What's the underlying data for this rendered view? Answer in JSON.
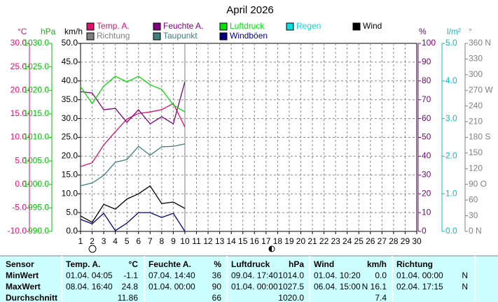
{
  "chart_data": {
    "type": "line",
    "title": "April 2026",
    "x": [
      1,
      2,
      3,
      4,
      5,
      6,
      7,
      8,
      9,
      10,
      11,
      12,
      13,
      14,
      15,
      16,
      17,
      18,
      19,
      20,
      21,
      22,
      23,
      24,
      25,
      26,
      27,
      28,
      29,
      30
    ],
    "xlim": [
      1,
      30
    ],
    "xticks": [
      1,
      2,
      3,
      4,
      5,
      6,
      7,
      8,
      9,
      10,
      11,
      12,
      13,
      14,
      15,
      16,
      17,
      18,
      19,
      20,
      21,
      22,
      23,
      24,
      25,
      26,
      27,
      28,
      29,
      30
    ],
    "grid": true,
    "axes": [
      {
        "name": "°C",
        "color": "#e0106e",
        "side": "left",
        "lim": [
          -10,
          30
        ],
        "ticks": [
          {
            "value": -10,
            "label": "-10.0"
          },
          {
            "value": -5,
            "label": "-5.0"
          },
          {
            "value": 0,
            "label": "0.0"
          },
          {
            "value": 5,
            "label": "5.0"
          },
          {
            "value": 10,
            "label": "10.0"
          },
          {
            "value": 15,
            "label": "15.0"
          },
          {
            "value": 20,
            "label": "20.0"
          },
          {
            "value": 25,
            "label": "25.0"
          },
          {
            "value": 30,
            "label": "30.0"
          }
        ]
      },
      {
        "name": "hPa",
        "color": "#00c000",
        "side": "left",
        "lim": [
          990,
          1030
        ],
        "ticks": [
          {
            "value": 990,
            "label": "990.0"
          },
          {
            "value": 995,
            "label": "995.0"
          },
          {
            "value": 1000,
            "label": "1000.0"
          },
          {
            "value": 1005,
            "label": "1005.0"
          },
          {
            "value": 1010,
            "label": "1010.0"
          },
          {
            "value": 1015,
            "label": "1015.0"
          },
          {
            "value": 1020,
            "label": "1020.0"
          },
          {
            "value": 1025,
            "label": "1025.0"
          },
          {
            "value": 1030,
            "label": "1030.0"
          }
        ]
      },
      {
        "name": "km/h",
        "color": "#000000",
        "side": "left",
        "lim": [
          0,
          50
        ],
        "ticks": [
          {
            "value": 0,
            "label": "0.0"
          },
          {
            "value": 5,
            "label": "5.0"
          },
          {
            "value": 10,
            "label": "10.0"
          },
          {
            "value": 15,
            "label": "15.0"
          },
          {
            "value": 20,
            "label": "20.0"
          },
          {
            "value": 25,
            "label": "25.0"
          },
          {
            "value": 30,
            "label": "30.0"
          },
          {
            "value": 35,
            "label": "35.0"
          },
          {
            "value": 40,
            "label": "40.0"
          },
          {
            "value": 45,
            "label": "45.0"
          },
          {
            "value": 50,
            "label": "50.0"
          }
        ]
      },
      {
        "name": "%",
        "color": "#800080",
        "side": "right",
        "lim": [
          0,
          100
        ],
        "ticks": [
          0,
          10,
          20,
          30,
          40,
          50,
          60,
          70,
          80,
          90,
          100
        ]
      },
      {
        "name": "l/m²",
        "color": "#00c0c0",
        "side": "right",
        "lim": [
          0,
          5
        ],
        "ticks": [
          {
            "value": 0,
            "label": "0.0"
          },
          {
            "value": 1,
            "label": "1.0"
          },
          {
            "value": 2,
            "label": "2.0"
          },
          {
            "value": 3,
            "label": "3.0"
          },
          {
            "value": 4,
            "label": "4.0"
          },
          {
            "value": 5,
            "label": "5.0"
          }
        ]
      },
      {
        "name": "°",
        "color": "#808080",
        "side": "right",
        "lim": [
          0,
          360
        ],
        "ticks": [
          {
            "value": 0,
            "label": "0 N"
          },
          30,
          60,
          {
            "value": 90,
            "label": "90 O"
          },
          120,
          150,
          {
            "value": 180,
            "label": "180 S"
          },
          210,
          240,
          {
            "value": 270,
            "label": "270 W"
          },
          300,
          330,
          {
            "value": 360,
            "label": "360 N"
          }
        ]
      }
    ],
    "series": [
      {
        "name": "Temp. A.",
        "color": "#e0106e",
        "axis": 0,
        "values": [
          3.8,
          4.6,
          8.4,
          11.2,
          13.9,
          15.1,
          15.4,
          15.9,
          17.2,
          12.2,
          null,
          null,
          null,
          null,
          null,
          null,
          null,
          null,
          null,
          null,
          null,
          null,
          null,
          null,
          null,
          null,
          null,
          null,
          null,
          null
        ]
      },
      {
        "name": "Feuchte A.",
        "color": "#800080",
        "axis": 3,
        "values": [
          74.3,
          73.6,
          64.7,
          65.4,
          58,
          64.7,
          57.2,
          61,
          57.2,
          79.6,
          null,
          null,
          null,
          null,
          null,
          null,
          null,
          null,
          null,
          null,
          null,
          null,
          null,
          null,
          null,
          null,
          null,
          null,
          null,
          null
        ]
      },
      {
        "name": "Luftdruck",
        "color": "#00e000",
        "axis": 1,
        "values": [
          1020.8,
          1017.2,
          1020.9,
          1023,
          1021.8,
          1023,
          1021.2,
          1020.2,
          1016.9,
          1015.4,
          null,
          null,
          null,
          null,
          null,
          null,
          null,
          null,
          null,
          null,
          null,
          null,
          null,
          null,
          null,
          null,
          null,
          null,
          null,
          null
        ]
      },
      {
        "name": "Regen",
        "color": "#00e0e0",
        "axis": 4,
        "values": [
          null,
          null,
          null,
          null,
          null,
          null,
          null,
          null,
          null,
          null,
          null,
          null,
          null,
          null,
          null,
          null,
          null,
          null,
          null,
          null,
          null,
          null,
          null,
          null,
          null,
          null,
          null,
          null,
          null,
          null
        ]
      },
      {
        "name": "Wind",
        "color": "#000000",
        "axis": 2,
        "values": [
          4.1,
          2.4,
          7.2,
          5.9,
          8.6,
          10,
          12.1,
          7.4,
          7.8,
          6.1,
          null,
          null,
          null,
          null,
          null,
          null,
          null,
          null,
          null,
          null,
          null,
          null,
          null,
          null,
          null,
          null,
          null,
          null,
          null,
          null
        ]
      },
      {
        "name": "Richtung",
        "color": "#808080",
        "axis": 5,
        "values": [
          null,
          null,
          null,
          null,
          null,
          null,
          null,
          null,
          null,
          null,
          null,
          null,
          null,
          null,
          null,
          null,
          null,
          null,
          null,
          null,
          null,
          null,
          null,
          null,
          null,
          null,
          null,
          null,
          null,
          null
        ]
      },
      {
        "name": "Taupunkt",
        "color": "#408080",
        "axis": 0,
        "values": [
          -0.3,
          0.3,
          1.9,
          4.7,
          5.3,
          8.1,
          6.2,
          8,
          8.1,
          8.6,
          null,
          null,
          null,
          null,
          null,
          null,
          null,
          null,
          null,
          null,
          null,
          null,
          null,
          null,
          null,
          null,
          null,
          null,
          null,
          null
        ]
      },
      {
        "name": "Windböen",
        "color": "#000080",
        "axis": 2,
        "values": [
          3.2,
          2,
          4.8,
          0.2,
          2.2,
          5,
          5,
          3.7,
          4.8,
          0,
          null,
          null,
          null,
          null,
          null,
          null,
          null,
          null,
          null,
          null,
          null,
          null,
          null,
          null,
          null,
          null,
          null,
          null,
          null,
          null
        ]
      }
    ]
  },
  "table": {
    "header": [
      "Sensor",
      "Temp. A.",
      "°C",
      "Feuchte A.",
      "%",
      "Luftdruck",
      "hPa",
      "Wind",
      "km/h",
      "Richtung"
    ],
    "rows": [
      [
        "MinWert",
        "01.04.  04:05",
        "-1.1",
        "07.04.  14:40",
        "36",
        "09.04.  17:40",
        "1014.0",
        "01.04.  10:20",
        "0.0",
        "01.04.  00:00",
        "N"
      ],
      [
        "MaxWert",
        "08.04.  16:40",
        "24.8",
        "01.04.  00:00",
        "90",
        "01.04.  00:00",
        "1027.5",
        "06.04.  15:00",
        "N 16.1",
        "02.04.  17:15",
        "N"
      ],
      [
        "Durchschnitt",
        null,
        "11.86",
        null,
        "66",
        null,
        "1020.0",
        null,
        "7.4",
        null,
        null
      ]
    ]
  }
}
